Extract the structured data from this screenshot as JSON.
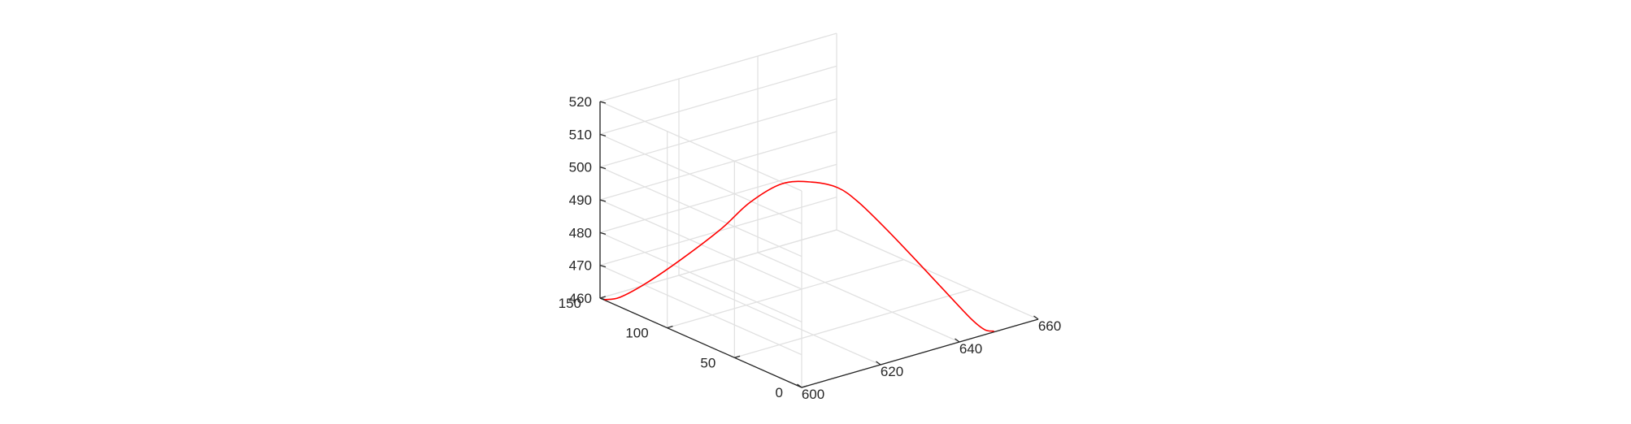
{
  "chart_data": {
    "type": "line",
    "projection": "3d",
    "title": "",
    "xlabel": "",
    "ylabel": "",
    "zlabel": "",
    "xlim": [
      600,
      660
    ],
    "ylim": [
      0,
      150
    ],
    "zlim": [
      460,
      520
    ],
    "x_ticks": [
      "600",
      "620",
      "640",
      "660"
    ],
    "y_ticks": [
      "0",
      "50",
      "100",
      "150"
    ],
    "z_ticks": [
      "460",
      "470",
      "480",
      "490",
      "500",
      "510",
      "520"
    ],
    "grid": true,
    "box": false,
    "series": [
      {
        "color": "#ff0000",
        "points": [
          {
            "x": 600.2,
            "y": 147,
            "z": 460.0
          },
          {
            "x": 601.3,
            "y": 139,
            "z": 461.8
          },
          {
            "x": 603.2,
            "y": 125,
            "z": 468.0
          },
          {
            "x": 605.8,
            "y": 106,
            "z": 478.0
          },
          {
            "x": 608.6,
            "y": 85,
            "z": 490.0
          },
          {
            "x": 610.7,
            "y": 70,
            "z": 500.0
          },
          {
            "x": 613.0,
            "y": 53,
            "z": 508.0
          },
          {
            "x": 615.5,
            "y": 38,
            "z": 510.4
          },
          {
            "x": 618.0,
            "y": 26,
            "z": 510.0
          },
          {
            "x": 620.5,
            "y": 18,
            "z": 506.2
          },
          {
            "x": 626.0,
            "y": 13,
            "z": 496.8
          },
          {
            "x": 632.0,
            "y": 9.5,
            "z": 486.3
          },
          {
            "x": 638.0,
            "y": 6.4,
            "z": 475.7
          },
          {
            "x": 644.0,
            "y": 3.4,
            "z": 465.2
          },
          {
            "x": 647.0,
            "y": 1.8,
            "z": 461.0
          },
          {
            "x": 649.0,
            "y": 1.0,
            "z": 460.0
          }
        ]
      }
    ]
  }
}
